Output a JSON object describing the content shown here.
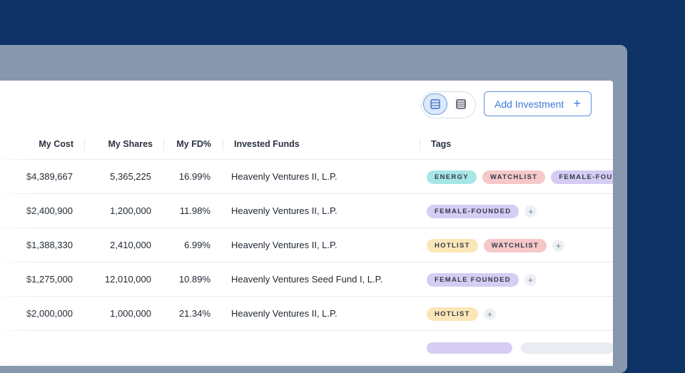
{
  "toolbar": {
    "view_cards_icon": "cards-view-icon",
    "view_table_icon": "table-view-icon",
    "add_label": "Add Investment",
    "add_icon": "+"
  },
  "columns": {
    "my_cost": "My Cost",
    "my_shares": "My Shares",
    "my_fd": "My FD%",
    "invested_funds": "Invested Funds",
    "tags": "Tags"
  },
  "rows": [
    {
      "cost": "$4,389,667",
      "shares": "5,365,225",
      "fd": "16.99%",
      "fund": "Heavenly Ventures II, L.P.",
      "tags": [
        "ENERGY",
        "WATCHLIST",
        "FEMALE-FOUNDED"
      ]
    },
    {
      "cost": "$2,400,900",
      "shares": "1,200,000",
      "fd": "11.98%",
      "fund": "Heavenly Ventures II, L.P.",
      "tags": [
        "FEMALE-FOUNDED"
      ]
    },
    {
      "cost": "$1,388,330",
      "shares": "2,410,000",
      "fd": "6.99%",
      "fund": "Heavenly Ventures II, L.P.",
      "tags": [
        "HOTLIST",
        "WATCHLIST"
      ]
    },
    {
      "cost": "$1,275,000",
      "shares": "12,010,000",
      "fd": "10.89%",
      "fund": "Heavenly Ventures Seed Fund I, L.P.",
      "tags": [
        "FEMALE FOUNDED"
      ]
    },
    {
      "cost": "$2,000,000",
      "shares": "1,000,000",
      "fd": "21.34%",
      "fund": "Heavenly Ventures II, L.P.",
      "tags": [
        "HOTLIST"
      ]
    }
  ],
  "tag_add": "+",
  "colors": {
    "background": "#0f3266",
    "frame": "#8797ad",
    "accent": "#3d7ad8",
    "energy": "#a6e7e6",
    "watchlist": "#f6c8c8",
    "female_founded": "#d5cdf3",
    "hotlist": "#fbe6b8"
  }
}
